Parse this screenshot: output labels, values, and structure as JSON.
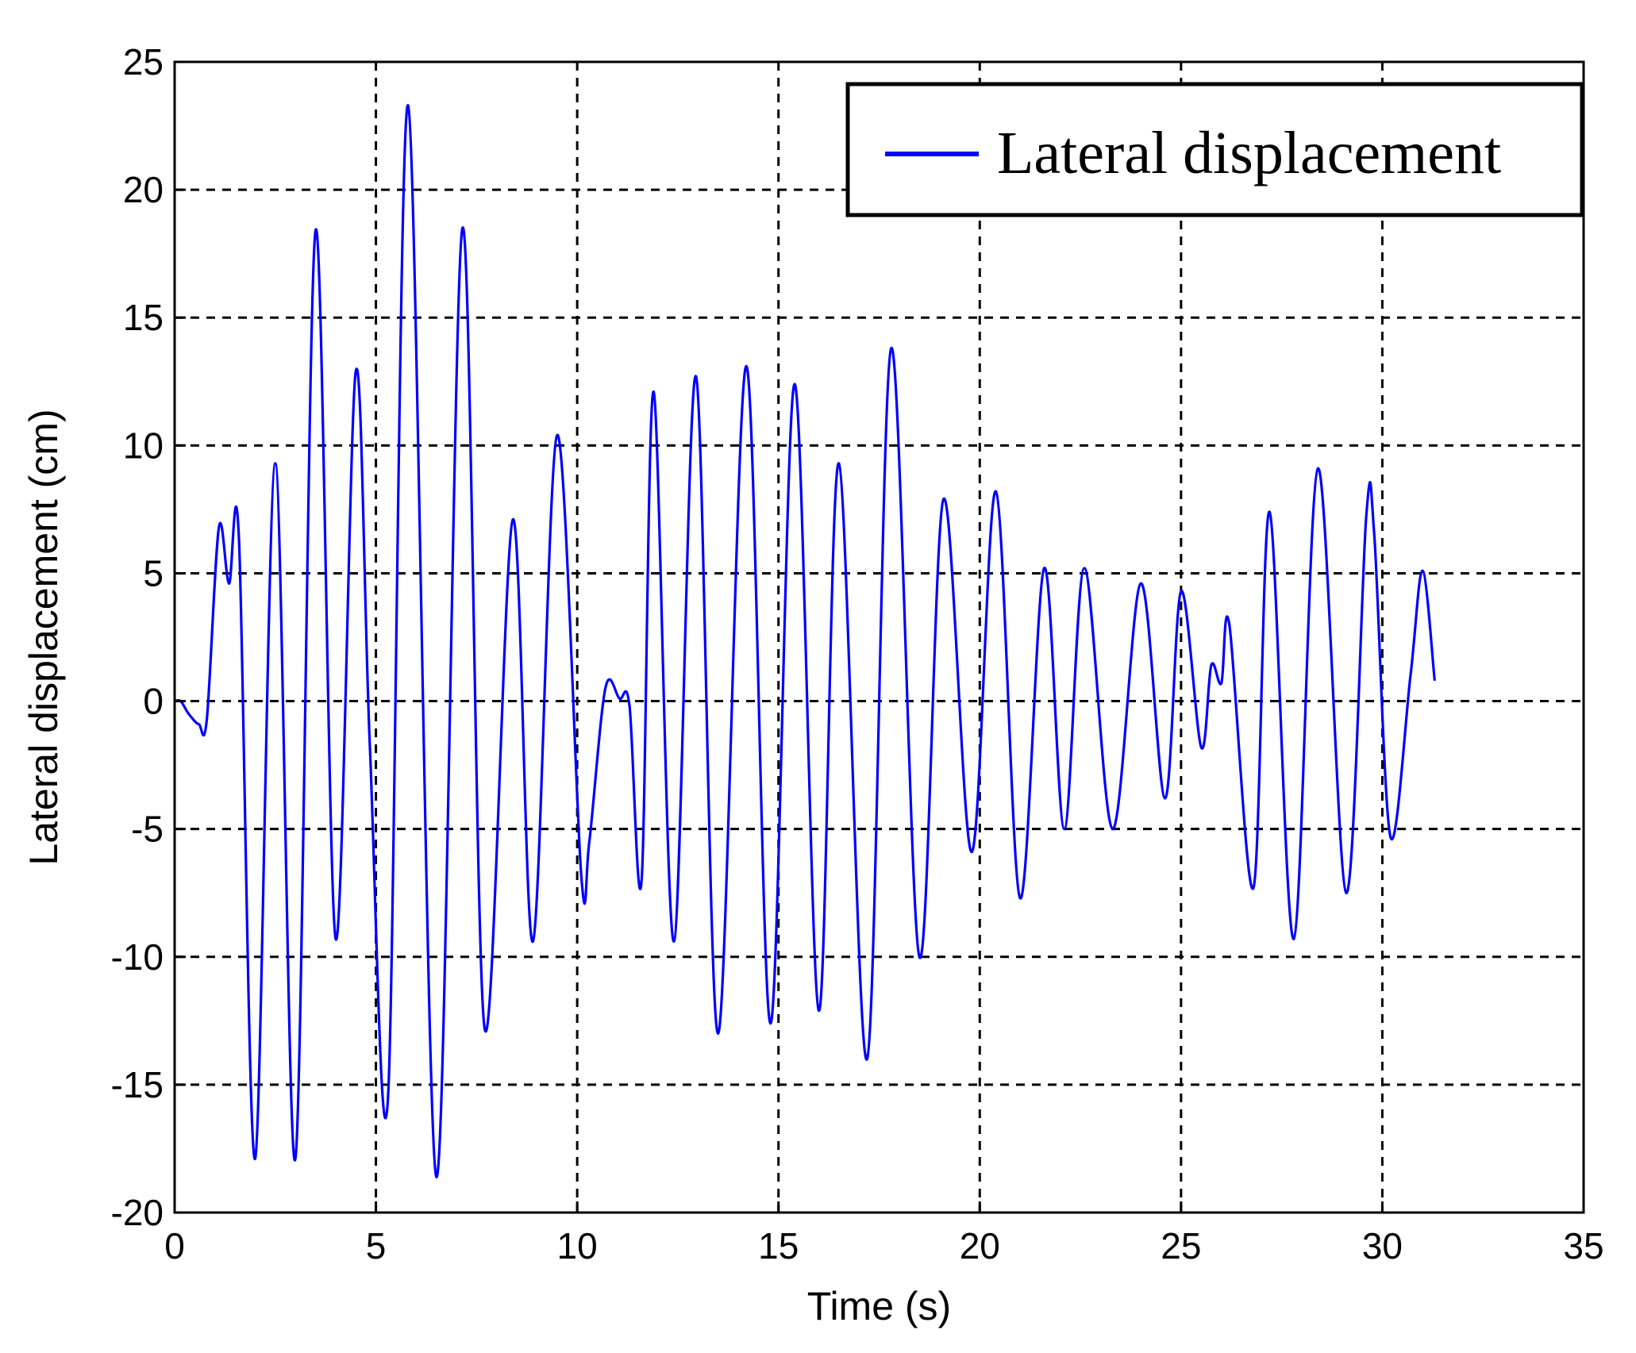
{
  "chart_data": {
    "type": "line",
    "title": "",
    "xlabel": "Time (s)",
    "ylabel": "Lateral displacement (cm)",
    "xlim": [
      0,
      35
    ],
    "ylim": [
      -20,
      25
    ],
    "xticks": [
      0,
      5,
      10,
      15,
      20,
      25,
      30,
      35
    ],
    "yticks": [
      -20,
      -15,
      -10,
      -5,
      0,
      5,
      10,
      15,
      20,
      25
    ],
    "grid": true,
    "grid_style": "dashed",
    "legend": {
      "position": "top-right",
      "entries": [
        "Lateral displacement"
      ]
    },
    "series": [
      {
        "name": "Lateral displacement",
        "color": "#0000ff",
        "points": [
          [
            0.0,
            0.0
          ],
          [
            0.15,
            0.0
          ],
          [
            0.35,
            -0.5
          ],
          [
            0.6,
            -0.9
          ],
          [
            0.8,
            -0.7
          ],
          [
            1.1,
            6.8
          ],
          [
            1.35,
            4.6
          ],
          [
            1.6,
            6.3
          ],
          [
            2.0,
            -17.9
          ],
          [
            2.5,
            9.3
          ],
          [
            3.0,
            -17.9
          ],
          [
            3.5,
            18.4
          ],
          [
            4.0,
            -9.3
          ],
          [
            4.5,
            12.9
          ],
          [
            4.85,
            -1.8
          ],
          [
            5.3,
            -15.5
          ],
          [
            5.8,
            23.3
          ],
          [
            6.5,
            -18.6
          ],
          [
            7.15,
            18.5
          ],
          [
            7.7,
            -12.8
          ],
          [
            8.4,
            7.1
          ],
          [
            8.9,
            -9.4
          ],
          [
            9.5,
            10.4
          ],
          [
            10.1,
            -6.8
          ],
          [
            10.3,
            -5.5
          ],
          [
            10.7,
            0.5
          ],
          [
            11.05,
            0.1
          ],
          [
            11.3,
            -0.2
          ],
          [
            11.6,
            -7.0
          ],
          [
            11.9,
            12.1
          ],
          [
            12.4,
            -9.4
          ],
          [
            12.95,
            12.7
          ],
          [
            13.5,
            -13.0
          ],
          [
            14.2,
            13.1
          ],
          [
            14.8,
            -12.6
          ],
          [
            15.4,
            12.4
          ],
          [
            16.0,
            -12.1
          ],
          [
            16.5,
            9.3
          ],
          [
            17.2,
            -14.0
          ],
          [
            17.8,
            13.8
          ],
          [
            18.5,
            -10.0
          ],
          [
            19.1,
            7.9
          ],
          [
            19.8,
            -5.9
          ],
          [
            20.4,
            8.2
          ],
          [
            21.0,
            -7.7
          ],
          [
            21.6,
            5.2
          ],
          [
            22.1,
            -5.0
          ],
          [
            22.6,
            5.2
          ],
          [
            23.3,
            -5.0
          ],
          [
            24.0,
            4.6
          ],
          [
            24.6,
            -3.8
          ],
          [
            25.0,
            4.3
          ],
          [
            25.5,
            -1.8
          ],
          [
            25.75,
            1.4
          ],
          [
            26.0,
            0.7
          ],
          [
            26.2,
            3.0
          ],
          [
            26.8,
            -7.3
          ],
          [
            27.2,
            7.4
          ],
          [
            27.8,
            -9.3
          ],
          [
            28.4,
            9.1
          ],
          [
            29.1,
            -7.5
          ],
          [
            29.6,
            7.2
          ],
          [
            29.8,
            6.5
          ],
          [
            30.2,
            -5.3
          ],
          [
            30.7,
            1.0
          ],
          [
            31.0,
            5.1
          ],
          [
            31.3,
            0.8
          ]
        ]
      }
    ]
  }
}
